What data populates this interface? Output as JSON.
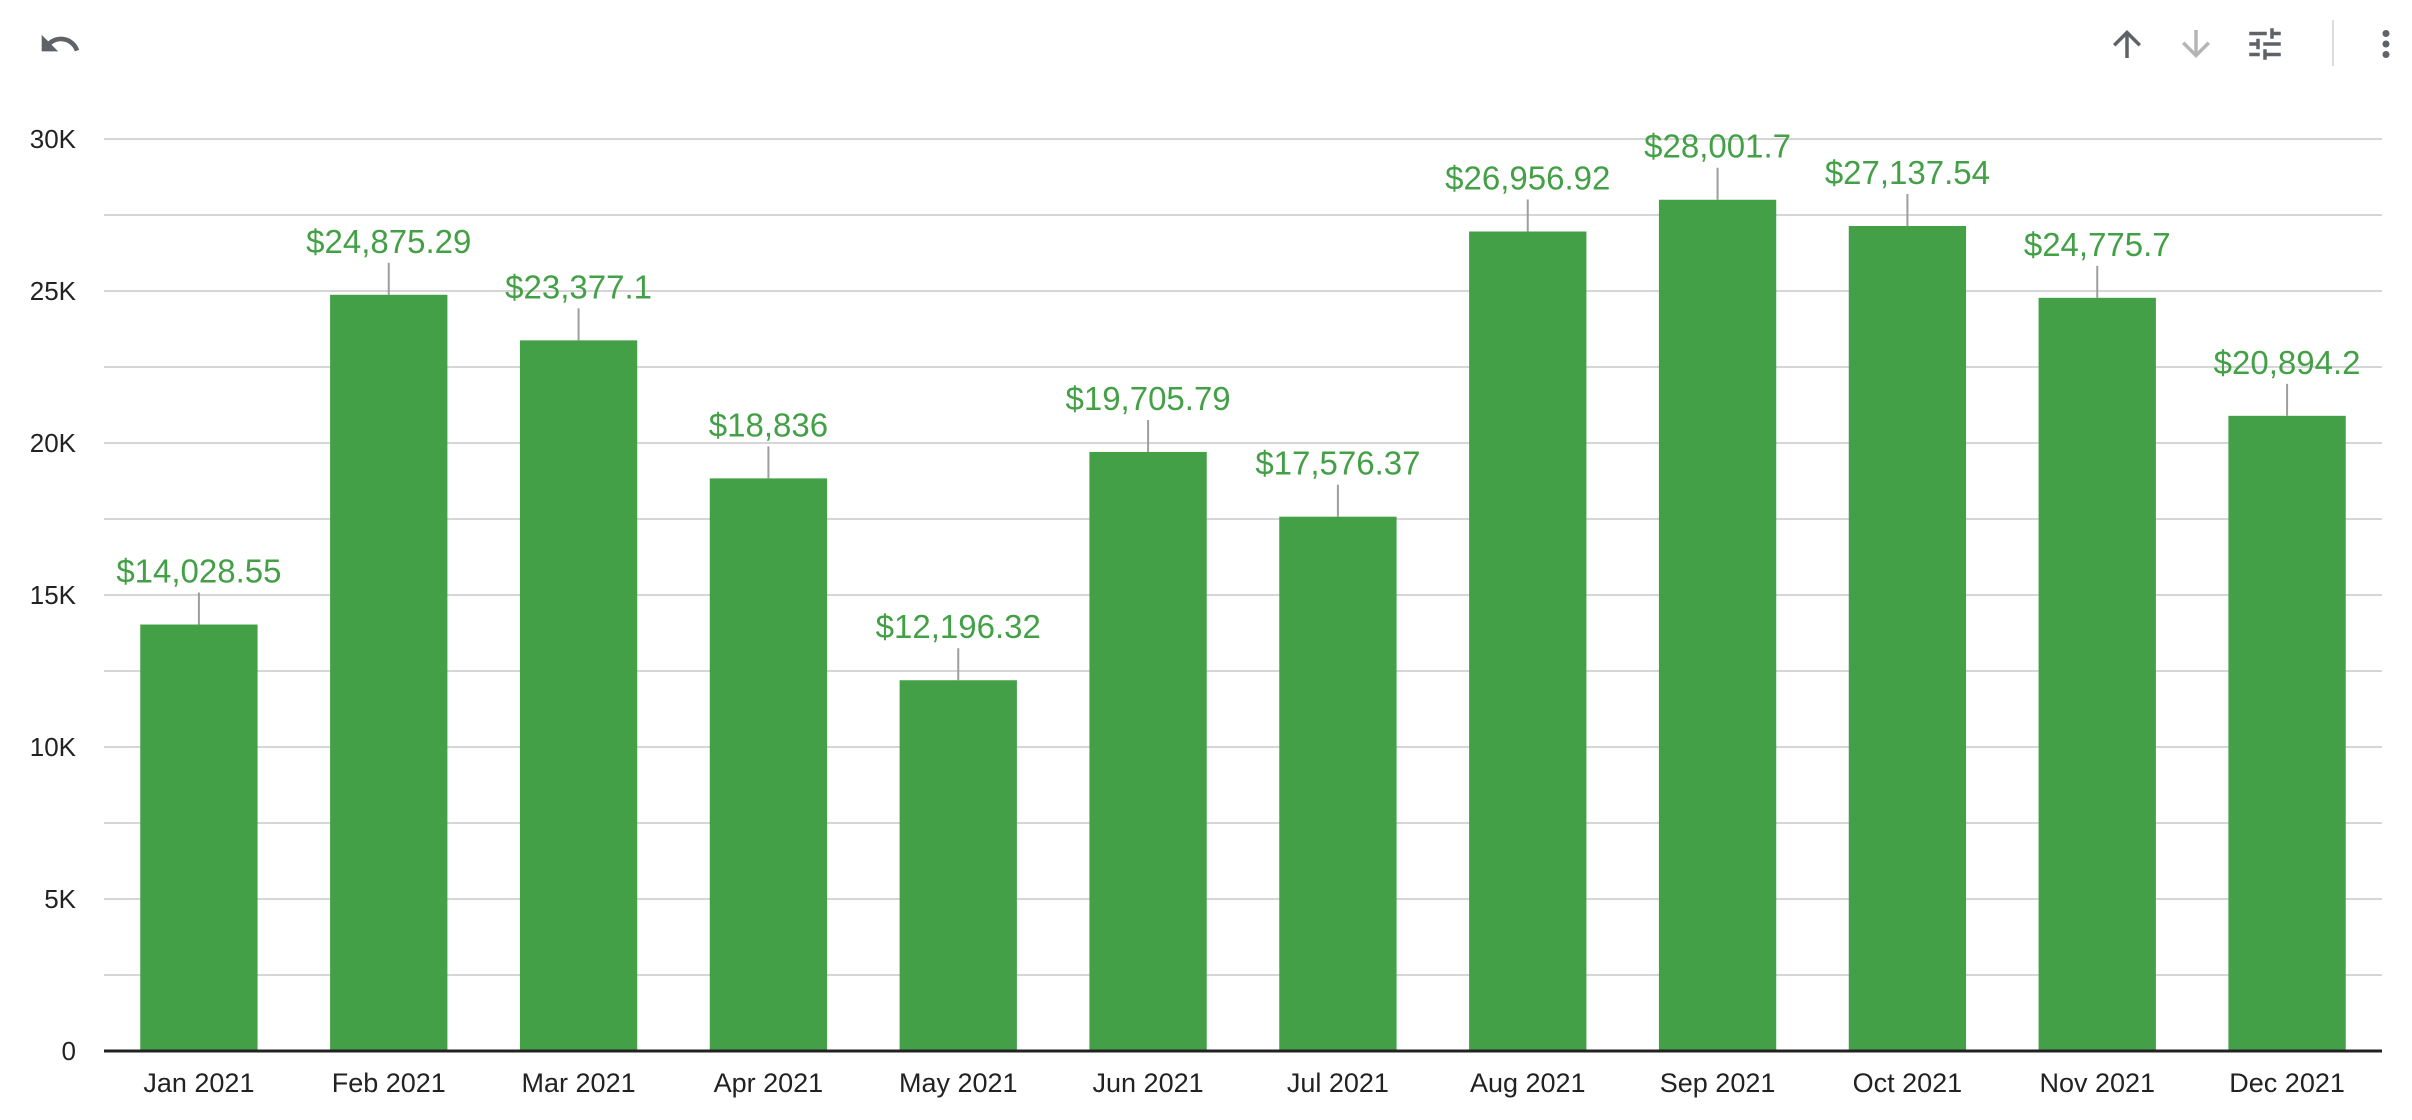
{
  "toolbar": {
    "undo_icon": "undo-icon",
    "sort_asc_icon": "arrow-up-icon",
    "sort_desc_icon": "arrow-down-icon",
    "options_icon": "tune-icon",
    "menu_icon": "more-vert-icon"
  },
  "colors": {
    "bar": "#43a047",
    "label": "#43a047",
    "grid": "#d6d6d6",
    "axis": "#222222",
    "icon_active": "#5f6368",
    "icon_disabled": "#b5b5b5"
  },
  "chart_data": {
    "type": "bar",
    "title": "",
    "xlabel": "",
    "ylabel": "",
    "categories": [
      "Jan 2021",
      "Feb 2021",
      "Mar 2021",
      "Apr 2021",
      "May 2021",
      "Jun 2021",
      "Jul 2021",
      "Aug 2021",
      "Sep 2021",
      "Oct 2021",
      "Nov 2021",
      "Dec 2021"
    ],
    "values": [
      14028.55,
      24875.29,
      23377.1,
      18836,
      12196.32,
      19705.79,
      17576.37,
      26956.92,
      28001.7,
      27137.54,
      24775.7,
      20894.2
    ],
    "value_labels": [
      "$14,028.55",
      "$24,875.29",
      "$23,377.1",
      "$18,836",
      "$12,196.32",
      "$19,705.79",
      "$17,576.37",
      "$26,956.92",
      "$28,001.7",
      "$27,137.54",
      "$24,775.7",
      "$20,894.2"
    ],
    "ylim": [
      0,
      30000
    ],
    "yticks": [
      0,
      5000,
      10000,
      15000,
      20000,
      25000,
      30000
    ],
    "ytick_labels": [
      "0",
      "5K",
      "10K",
      "15K",
      "20K",
      "25K",
      "30K"
    ],
    "grid": true,
    "legend": "none"
  }
}
